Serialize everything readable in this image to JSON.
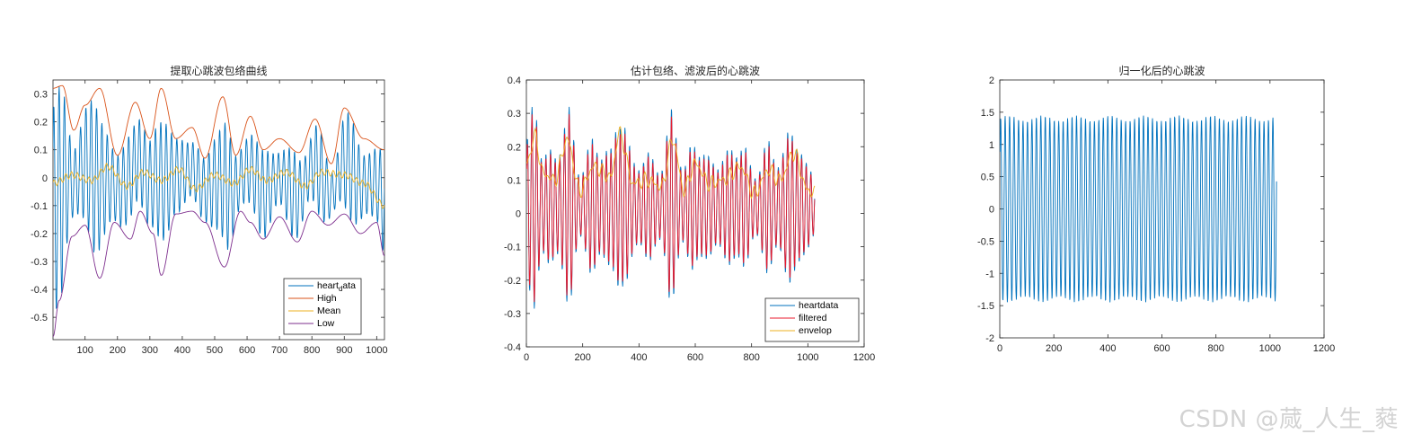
{
  "colors": {
    "blue": "#0072BD",
    "orange": "#D95319",
    "yellow": "#EDB120",
    "purple": "#7E2F8E",
    "red": "#E8192C",
    "axis": "#262626"
  },
  "watermark": "CSDN @蒇_人生_蕤",
  "chart_data": [
    {
      "type": "line",
      "title": "提取心跳波包络曲线",
      "xlim": [
        1,
        1024
      ],
      "ylim": [
        -0.58,
        0.35
      ],
      "xticks": [
        100,
        200,
        300,
        400,
        500,
        600,
        700,
        800,
        900,
        1000
      ],
      "yticks": [
        -0.5,
        -0.4,
        -0.3,
        -0.2,
        -0.1,
        0,
        0.1,
        0.2,
        0.3
      ],
      "xtick_labels": [
        "100",
        "200",
        "300",
        "400",
        "500",
        "600",
        "700",
        "800",
        "900",
        "1000"
      ],
      "ytick_labels": [
        "-0.5",
        "-0.4",
        "-0.3",
        "-0.2",
        "-0.1",
        "0",
        "0.1",
        "0.2",
        "0.3"
      ],
      "legend": {
        "position": "bottom-right",
        "entries": [
          {
            "label_pre": "heart",
            "label_sub": "d",
            "label_post": "ata",
            "color": "#0072BD"
          },
          {
            "label": "High",
            "color": "#D95319"
          },
          {
            "label": "Mean",
            "color": "#EDB120"
          },
          {
            "label": "Low",
            "color": "#7E2F8E"
          }
        ]
      },
      "series": [
        {
          "name": "heart_data",
          "color": "#0072BD",
          "kind": "oscillation",
          "cycles": 62
        },
        {
          "name": "High",
          "color": "#D95319",
          "kind": "upper-envelope",
          "x": [
            1,
            30,
            65,
            100,
            145,
            200,
            255,
            300,
            335,
            380,
            430,
            470,
            525,
            565,
            610,
            650,
            700,
            760,
            810,
            860,
            900,
            960,
            1024
          ],
          "y": [
            0.32,
            0.33,
            0.17,
            0.26,
            0.32,
            0.08,
            0.27,
            0.14,
            0.32,
            0.14,
            0.18,
            0.07,
            0.29,
            0.08,
            0.22,
            0.1,
            0.14,
            0.09,
            0.21,
            0.05,
            0.25,
            0.14,
            0.1
          ]
        },
        {
          "name": "Mean",
          "color": "#EDB120",
          "kind": "mid",
          "x": [
            1,
            60,
            120,
            170,
            230,
            280,
            335,
            390,
            440,
            500,
            560,
            610,
            660,
            720,
            780,
            830,
            900,
            960,
            1024
          ],
          "y": [
            -0.02,
            0.01,
            -0.01,
            0.04,
            -0.03,
            0.02,
            -0.01,
            0.03,
            -0.04,
            0.01,
            -0.02,
            0.03,
            -0.01,
            0.02,
            -0.03,
            0.02,
            0.01,
            -0.02,
            -0.1
          ]
        },
        {
          "name": "Low",
          "color": "#7E2F8E",
          "kind": "lower-envelope",
          "x": [
            1,
            20,
            60,
            100,
            145,
            190,
            240,
            270,
            310,
            335,
            380,
            430,
            470,
            530,
            580,
            610,
            650,
            700,
            755,
            800,
            850,
            900,
            950,
            1000,
            1024
          ],
          "y": [
            -0.57,
            -0.44,
            -0.21,
            -0.17,
            -0.36,
            -0.16,
            -0.22,
            -0.12,
            -0.2,
            -0.35,
            -0.13,
            -0.12,
            -0.16,
            -0.32,
            -0.12,
            -0.16,
            -0.22,
            -0.14,
            -0.23,
            -0.12,
            -0.17,
            -0.13,
            -0.2,
            -0.16,
            -0.28
          ]
        }
      ]
    },
    {
      "type": "line",
      "title": "估计包络、滤波后的心跳波",
      "xlim": [
        0,
        1200
      ],
      "ylim": [
        -0.4,
        0.4
      ],
      "xticks": [
        0,
        200,
        400,
        600,
        800,
        1000,
        1200
      ],
      "yticks": [
        -0.4,
        -0.3,
        -0.2,
        -0.1,
        0,
        0.1,
        0.2,
        0.3,
        0.4
      ],
      "xtick_labels": [
        "0",
        "200",
        "400",
        "600",
        "800",
        "1000",
        "1200"
      ],
      "ytick_labels": [
        "-0.4",
        "-0.3",
        "-0.2",
        "-0.1",
        "0",
        "0.1",
        "0.2",
        "0.3",
        "0.4"
      ],
      "legend": {
        "position": "bottom-right",
        "entries": [
          {
            "label": "heartdata",
            "color": "#0072BD"
          },
          {
            "label": "filtered",
            "color": "#E8192C"
          },
          {
            "label": "envelop",
            "color": "#EDB120"
          }
        ]
      },
      "series": [
        {
          "name": "heartdata",
          "color": "#0072BD",
          "kind": "oscillation",
          "cycles": 62
        },
        {
          "name": "filtered",
          "color": "#E8192C",
          "kind": "oscillation",
          "cycles": 62
        },
        {
          "name": "envelop",
          "color": "#EDB120",
          "kind": "envelope-trace",
          "x": [
            1,
            30,
            60,
            100,
            145,
            190,
            240,
            300,
            330,
            380,
            430,
            480,
            520,
            560,
            600,
            650,
            700,
            760,
            810,
            860,
            900,
            950,
            1000,
            1024
          ],
          "y": [
            0.15,
            0.23,
            0.12,
            0.1,
            0.22,
            0.07,
            0.14,
            0.11,
            0.24,
            0.09,
            0.1,
            0.08,
            0.22,
            0.07,
            0.15,
            0.09,
            0.1,
            0.14,
            0.06,
            0.13,
            0.1,
            0.18,
            0.07,
            0.06
          ]
        }
      ]
    },
    {
      "type": "line",
      "title": "归一化后的心跳波",
      "xlim": [
        0,
        1200
      ],
      "ylim": [
        -2,
        2
      ],
      "xticks": [
        0,
        200,
        400,
        600,
        800,
        1000,
        1200
      ],
      "yticks": [
        -2,
        -1.5,
        -1,
        -0.5,
        0,
        0.5,
        1,
        1.5,
        2
      ],
      "xtick_labels": [
        "0",
        "200",
        "400",
        "600",
        "800",
        "1000",
        "1200"
      ],
      "ytick_labels": [
        "-2",
        "-1.5",
        "-1",
        "-0.5",
        "0",
        "0.5",
        "1",
        "1.5",
        "2"
      ],
      "series": [
        {
          "name": "normalized",
          "color": "#0072BD",
          "kind": "normalized",
          "cycles": 62,
          "amplitude": 1.45
        }
      ]
    }
  ]
}
